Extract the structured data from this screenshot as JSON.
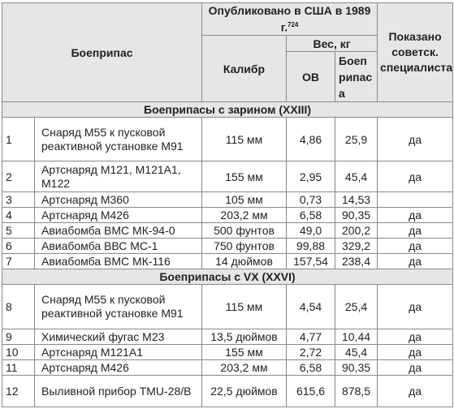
{
  "header": {
    "munition": "Боеприпас",
    "published": "Опубликовано в США в 1989 г.",
    "published_ref": "724",
    "weight": "Вес, кг",
    "caliber": "Калибр",
    "agent": "ОВ",
    "munition_weight": "Боеприпаса",
    "shown": "Показано советск. специалистам"
  },
  "sections": [
    {
      "title": "Боеприпасы с зарином (XXIII)",
      "rows": [
        {
          "n": "1",
          "name": "Снаряд М55 к пусковой реактивной установке М91",
          "caliber": "115 мм",
          "agent": "4,86",
          "weight": "25,9",
          "shown": "да"
        },
        {
          "n": "2",
          "name": "Артснаряд М121, М121А1, М122",
          "caliber": "155 мм",
          "agent": "2,95",
          "weight": "45,4",
          "shown": "да"
        },
        {
          "n": "3",
          "name": "Артснаряд М360",
          "caliber": "105 мм",
          "agent": "0,73",
          "weight": "14,53",
          "shown": ""
        },
        {
          "n": "4",
          "name": "Артснаряд М426",
          "caliber": "203,2 мм",
          "agent": "6,58",
          "weight": "90,35",
          "shown": "да"
        },
        {
          "n": "5",
          "name": "Авиабомба ВМС МК-94-0",
          "caliber": "500 фунтов",
          "agent": "49,0",
          "weight": "200,2",
          "shown": "да"
        },
        {
          "n": "6",
          "name": "Авиабомба ВВС МС-1",
          "caliber": "750 фунтов",
          "agent": "99,88",
          "weight": "329,2",
          "shown": "да"
        },
        {
          "n": "7",
          "name": "Авиабомба ВМС МК-116",
          "caliber": "14 дюймов",
          "agent": "157,54",
          "weight": "238,4",
          "shown": "да"
        }
      ]
    },
    {
      "title": "Боеприпасы с VX (XXVI)",
      "rows": [
        {
          "n": "8",
          "name": "Снаряд М55 к пусковой реактивной установке М91",
          "caliber": "115 мм",
          "agent": "4,54",
          "weight": "25,4",
          "shown": "да"
        },
        {
          "n": "9",
          "name": "Химический фугас М23",
          "caliber": "13,5 дюймов",
          "agent": "4,77",
          "weight": "10,44",
          "shown": "да"
        },
        {
          "n": "10",
          "name": "Артснаряд М121А1",
          "caliber": "155 мм",
          "agent": "2,72",
          "weight": "45,4",
          "shown": "да"
        },
        {
          "n": "11",
          "name": "Артснаряд М426",
          "caliber": "203,2 мм",
          "agent": "6,58",
          "weight": "90,35",
          "shown": "да"
        },
        {
          "n": "12",
          "name": "Выливной прибор TMU-28/B",
          "caliber": "22,5 дюймов",
          "agent": "615,6",
          "weight": "878,5",
          "shown": "да"
        }
      ]
    }
  ]
}
